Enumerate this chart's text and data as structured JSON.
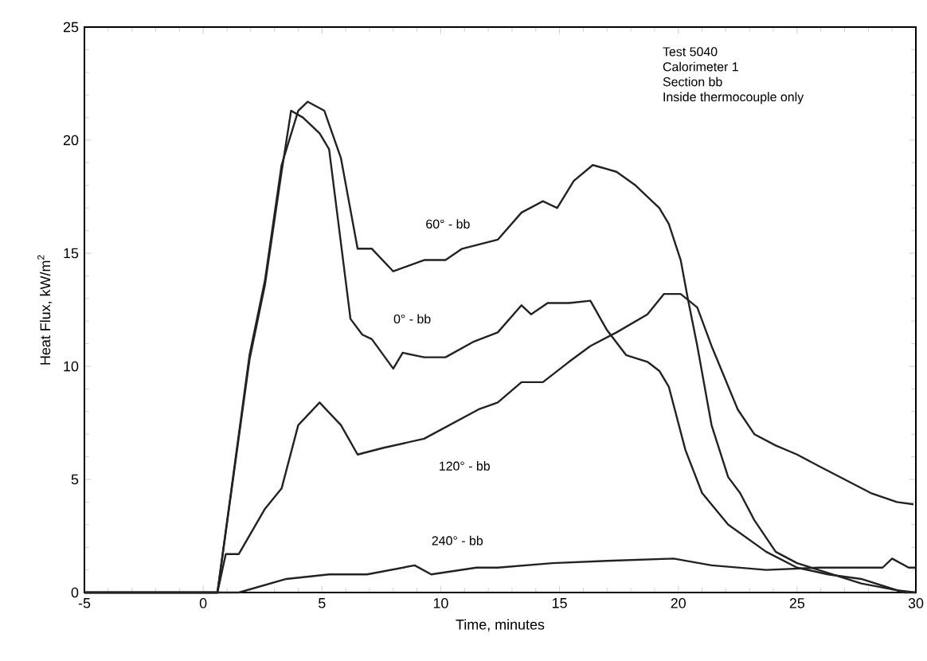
{
  "chart_data": {
    "type": "line",
    "xlabel": "Time, minutes",
    "ylabel": "Heat Flux, kW/m$^{2}$",
    "xlim": [
      -5,
      30
    ],
    "ylim": [
      0,
      25
    ],
    "xticks": [
      -5,
      0,
      5,
      10,
      15,
      20,
      25,
      30
    ],
    "yticks": [
      0,
      5,
      10,
      15,
      20,
      25
    ],
    "grid": false,
    "legend": false,
    "annotations": [
      "Test 5040",
      "Calorimeter 1",
      "Section bb",
      "Inside thermocouple only"
    ],
    "series": [
      {
        "name": "60° - bb",
        "color": "#222222",
        "x": [
          -5,
          0,
          0.6,
          1.95,
          2.6,
          3.3,
          4.0,
          4.4,
          5.1,
          5.8,
          6.5,
          7.1,
          8.0,
          9.3,
          10.2,
          10.9,
          12.4,
          13.4,
          14.3,
          14.9,
          15.6,
          16.4,
          17.4,
          18.2,
          19.2,
          19.6,
          20.1,
          20.4,
          20.8,
          21.4,
          22.1,
          22.6,
          23.2,
          24.1,
          25.0,
          25.9,
          27.7,
          29.2,
          30
        ],
        "values": [
          0,
          0,
          0,
          10.5,
          13.8,
          18.9,
          21.3,
          21.7,
          21.3,
          19.2,
          15.2,
          15.2,
          14.2,
          14.7,
          14.7,
          15.2,
          15.6,
          16.8,
          17.3,
          17.0,
          18.2,
          18.9,
          18.6,
          18.0,
          17.0,
          16.3,
          14.7,
          13.0,
          10.9,
          7.4,
          5.1,
          4.4,
          3.2,
          1.8,
          1.3,
          1.0,
          0.4,
          0.1,
          0.0
        ]
      },
      {
        "name": "0° - bb",
        "color": "#222222",
        "x": [
          -5,
          0,
          0.6,
          1.95,
          2.6,
          3.3,
          3.7,
          4.2,
          4.9,
          5.3,
          6.2,
          6.7,
          7.1,
          8.0,
          8.4,
          9.3,
          10.2,
          11.4,
          12.4,
          13.4,
          13.8,
          14.5,
          15.4,
          16.3,
          17.0,
          17.8,
          18.7,
          19.2,
          19.6,
          20.3,
          21.0,
          22.1,
          23.7,
          25.0,
          26.3,
          27.7,
          29.5,
          30
        ],
        "values": [
          0,
          0,
          0,
          10.3,
          13.6,
          18.6,
          21.3,
          21.0,
          20.3,
          19.6,
          12.1,
          11.4,
          11.2,
          9.9,
          10.6,
          10.4,
          10.4,
          11.1,
          11.5,
          12.7,
          12.3,
          12.8,
          12.8,
          12.9,
          11.6,
          10.5,
          10.2,
          9.8,
          9.1,
          6.3,
          4.4,
          3.0,
          1.8,
          1.1,
          0.8,
          0.6,
          0.0,
          0.0
        ]
      },
      {
        "name": "120° - bb",
        "color": "#222222",
        "x": [
          -5,
          0,
          0.6,
          0.95,
          1.5,
          2.6,
          3.3,
          4.0,
          4.9,
          5.8,
          6.5,
          7.6,
          9.3,
          11.6,
          12.4,
          13.4,
          14.3,
          15.4,
          16.3,
          17.4,
          18.7,
          19.4,
          20.1,
          20.8,
          21.4,
          22.5,
          23.2,
          24.1,
          25.0,
          25.9,
          27.0,
          28.1,
          29.2,
          29.9
        ],
        "values": [
          0,
          0,
          0,
          1.7,
          1.7,
          3.7,
          4.6,
          7.4,
          8.4,
          7.4,
          6.1,
          6.4,
          6.8,
          8.1,
          8.4,
          9.3,
          9.3,
          10.2,
          10.9,
          11.5,
          12.3,
          13.2,
          13.2,
          12.6,
          10.9,
          8.1,
          7.0,
          6.5,
          6.1,
          5.6,
          5.0,
          4.4,
          4.0,
          3.9
        ]
      },
      {
        "name": "240° - bb",
        "color": "#222222",
        "x": [
          -5,
          0,
          1.5,
          3.5,
          5.3,
          6.9,
          8.9,
          9.6,
          11.5,
          12.4,
          14.7,
          17.0,
          19.8,
          21.4,
          23.7,
          25.9,
          28.6,
          29.0,
          29.7,
          30
        ],
        "values": [
          0,
          0,
          0,
          0.6,
          0.8,
          0.8,
          1.2,
          0.8,
          1.1,
          1.1,
          1.3,
          1.4,
          1.5,
          1.2,
          1.0,
          1.1,
          1.1,
          1.5,
          1.1,
          1.1
        ]
      }
    ]
  }
}
